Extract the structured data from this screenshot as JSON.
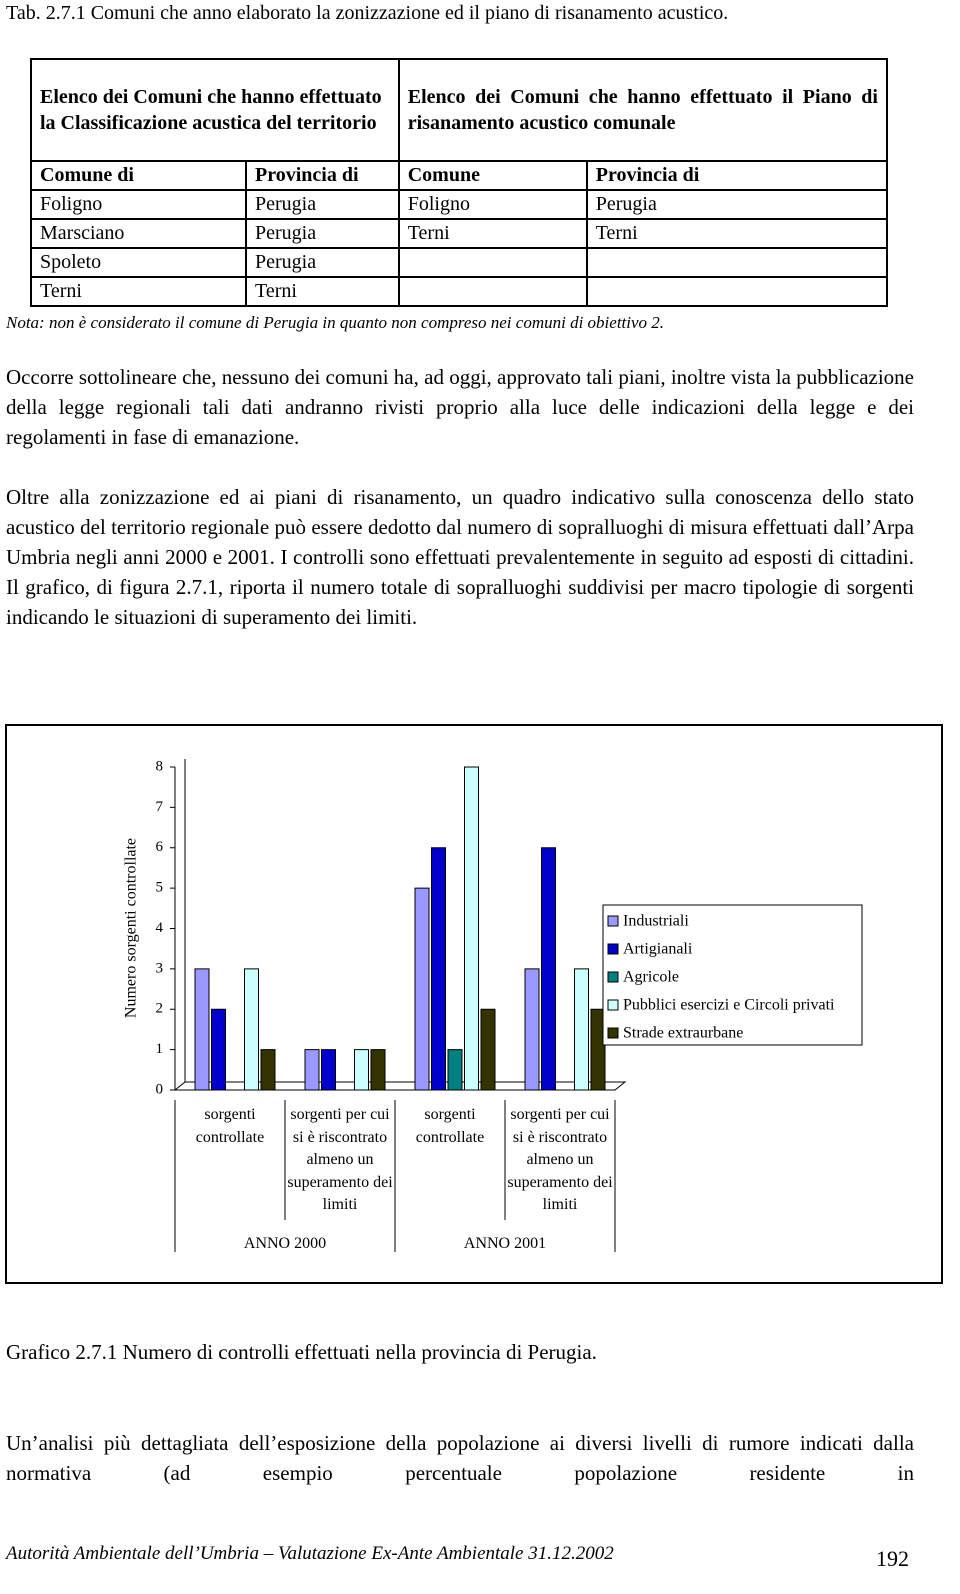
{
  "table_caption": "Tab. 2.7.1 Comuni che anno elaborato la zonizzazione ed il piano di risanamento acustico.",
  "table": {
    "group_headers": [
      "Elenco dei Comuni che hanno effettuato la Classificazione acustica del territorio",
      "Elenco dei Comuni che hanno effettuato il Piano di risanamento acustico comunale"
    ],
    "columns": [
      "Comune di",
      "Provincia di",
      "Comune",
      "Provincia di"
    ],
    "rows": [
      [
        "Foligno",
        "Perugia",
        "Foligno",
        "Perugia"
      ],
      [
        "Marsciano",
        "Perugia",
        "Terni",
        "Terni"
      ],
      [
        "Spoleto",
        "Perugia",
        null,
        null
      ],
      [
        "Terni",
        "Terni",
        null,
        null
      ]
    ],
    "note": "Nota: non è considerato il comune di Perugia in quanto non compreso nei comuni di obiettivo 2."
  },
  "paragraphs": [
    "Occorre sottolineare che, nessuno dei comuni ha, ad oggi, approvato tali piani, inoltre vista la pubblicazione della legge regionali tali dati andranno rivisti proprio alla luce delle indicazioni della legge e dei regolamenti in fase di emanazione.",
    "Oltre alla zonizzazione ed ai piani di risanamento, un quadro indicativo sulla conoscenza dello stato acustico del territorio regionale può essere dedotto dal numero di sopralluoghi di misura effettuati dall’Arpa Umbria negli anni 2000 e 2001. I controlli sono effettuati prevalentemente in seguito ad esposti di cittadini. Il grafico, di figura 2.7.1, riporta il numero totale di sopralluoghi suddivisi per macro tipologie di sorgenti indicando le situazioni di superamento dei limiti.",
    "Un’analisi più dettagliata dell’esposizione della popolazione ai diversi livelli di rumore indicati dalla normativa (ad esempio percentuale popolazione residente in"
  ],
  "chart_data": {
    "type": "bar",
    "y_label": "Numero sorgenti controllate",
    "categories": [
      "sorgenti controllate",
      "sorgenti per cui si è riscontrato almeno un superamento dei limiti",
      "sorgenti controllate",
      "sorgenti per cui si è riscontrato almeno un superamento dei limiti"
    ],
    "groups": [
      "ANNO 2000",
      "ANNO 2001"
    ],
    "series": [
      {
        "name": "Industriali",
        "color": "#9999ff",
        "values": [
          3,
          1,
          5,
          3
        ]
      },
      {
        "name": "Artigianali",
        "color": "#0000cc",
        "values": [
          2,
          1,
          6,
          6
        ]
      },
      {
        "name": "Agricole",
        "color": "#008080",
        "values": [
          0,
          0,
          1,
          0
        ]
      },
      {
        "name": "Pubblici esercizi e Circoli privati",
        "color": "#ccffff",
        "values": [
          3,
          1,
          8,
          3
        ]
      },
      {
        "name": "Strade extraurbane",
        "color": "#333300",
        "values": [
          1,
          1,
          2,
          2
        ]
      }
    ],
    "ylim": [
      0,
      8
    ],
    "yticks": [
      0,
      1,
      2,
      3,
      4,
      5,
      6,
      7,
      8
    ],
    "grid": false,
    "legend": "right"
  },
  "chart_caption": "Grafico 2.7.1 Numero di controlli effettuati nella provincia di Perugia.",
  "footer": {
    "text": "Autorità Ambientale dell’Umbria – Valutazione Ex-Ante Ambientale 31.12.2002",
    "page": "192"
  }
}
